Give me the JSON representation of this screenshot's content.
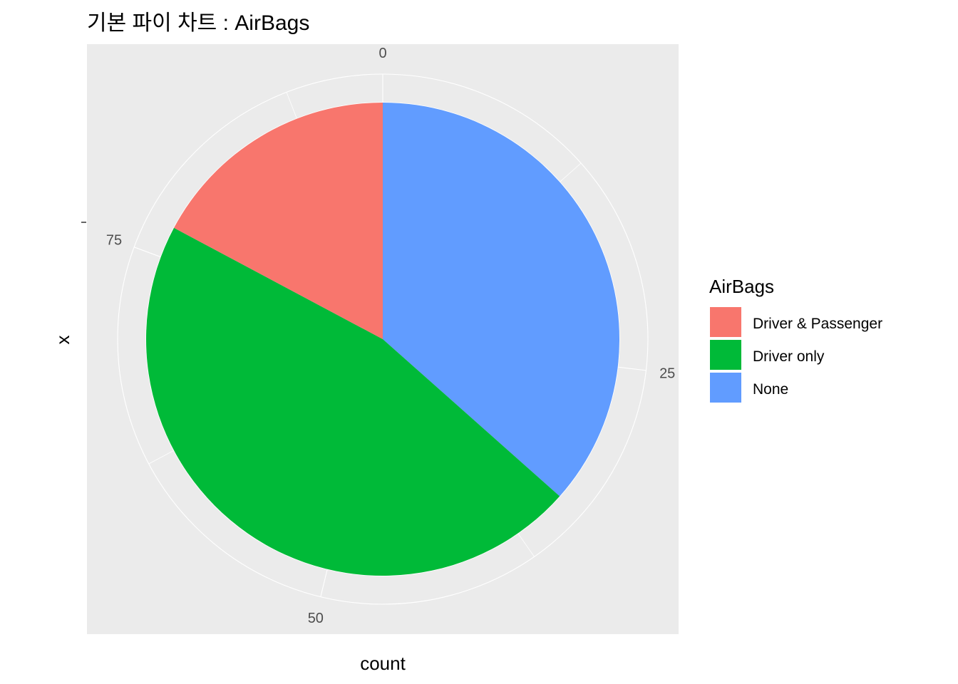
{
  "chart_data": {
    "type": "pie",
    "title": "기본 파이 차트 : AirBags",
    "xlabel": "count",
    "ylabel": "x",
    "legend": {
      "title": "AirBags",
      "placement": "right"
    },
    "radial_ticks": [
      "0",
      "25",
      "50",
      "75"
    ],
    "total": 93,
    "slices": [
      {
        "label": "None",
        "value": 34,
        "color": "#619CFF"
      },
      {
        "label": "Driver only",
        "value": 43,
        "color": "#00BA38"
      },
      {
        "label": "Driver & Passenger",
        "value": 16,
        "color": "#F8766D"
      }
    ],
    "legend_order": [
      "Driver & Passenger",
      "Driver only",
      "None"
    ],
    "panel_background": "#EBEBEB",
    "grid_color": "#FFFFFF"
  }
}
